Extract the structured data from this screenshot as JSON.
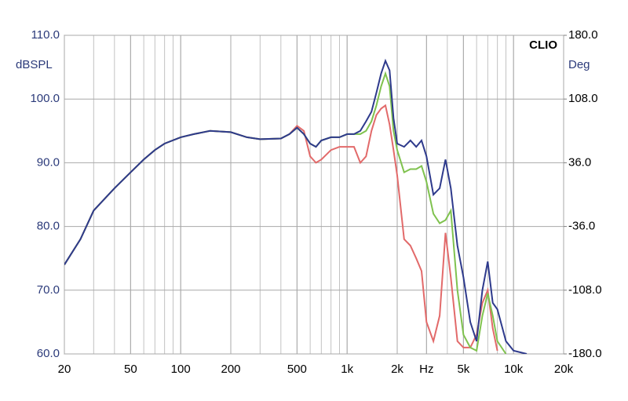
{
  "chart_data": {
    "type": "line",
    "badge": "CLIO",
    "ylabel": "dBSPL",
    "y2label": "Deg",
    "xscale": "log",
    "grid": true,
    "x": [
      20,
      25,
      30,
      40,
      50,
      60,
      70,
      80,
      100,
      120,
      150,
      200,
      250,
      300,
      400,
      450,
      500,
      550,
      600,
      650,
      700,
      800,
      900,
      1000,
      1100,
      1200,
      1300,
      1400,
      1500,
      1600,
      1700,
      1800,
      1900,
      2000,
      2200,
      2400,
      2600,
      2800,
      3000,
      3300,
      3600,
      3900,
      4200,
      4600,
      5000,
      5500,
      6000,
      6500,
      7000,
      7500,
      8000,
      9000,
      10000,
      12000
    ],
    "xlim": [
      20,
      20000
    ],
    "xticks": [
      20,
      50,
      100,
      200,
      500,
      {
        "value": 1000,
        "label": "1k"
      },
      {
        "value": 2000,
        "label": "2k"
      },
      {
        "value": 3000,
        "label": "Hz"
      },
      {
        "value": 5000,
        "label": "5k"
      },
      {
        "value": 10000,
        "label": "10k"
      },
      {
        "value": 20000,
        "label": "20k"
      }
    ],
    "ylim": [
      60,
      110
    ],
    "yticks": [
      {
        "value": 60,
        "label": "60.0"
      },
      {
        "value": 70,
        "label": "70.0"
      },
      {
        "value": 80,
        "label": "80.0"
      },
      {
        "value": 90,
        "label": "90.0"
      },
      {
        "value": 100,
        "label": "100.0"
      },
      {
        "value": 110,
        "label": "110.0"
      }
    ],
    "y2lim": [
      -180,
      180
    ],
    "y2ticks": [
      {
        "value": -180,
        "label": "-180.0"
      },
      {
        "value": -108,
        "label": "-108.0"
      },
      {
        "value": -36,
        "label": "-36.0"
      },
      {
        "value": 36,
        "label": "36.0"
      },
      {
        "value": 108,
        "label": "108.0"
      },
      {
        "value": 180,
        "label": "180.0"
      }
    ],
    "series": [
      {
        "color": "#e26a6a",
        "values": [
          74,
          78,
          82.5,
          86,
          88.5,
          90.5,
          92,
          93,
          94,
          94.5,
          95,
          94.8,
          94,
          93.7,
          93.8,
          94.5,
          95.8,
          95,
          91,
          90,
          90.5,
          92,
          92.5,
          92.5,
          92.5,
          90,
          91,
          95,
          97.5,
          98.5,
          99,
          96,
          92,
          88,
          78,
          77,
          75,
          73,
          65,
          62,
          66,
          79,
          72,
          62,
          61,
          61,
          63,
          68,
          70,
          64,
          60.5,
          null,
          null,
          null
        ]
      },
      {
        "color": "#7fc24e",
        "values": [
          74,
          78,
          82.5,
          86,
          88.5,
          90.5,
          92,
          93,
          94,
          94.5,
          95,
          94.8,
          94,
          93.7,
          93.8,
          94.5,
          95.5,
          94.5,
          93,
          92.5,
          93.5,
          94,
          94,
          94.5,
          94.5,
          94.5,
          95,
          96.5,
          99,
          102,
          104,
          102,
          95,
          92,
          88.5,
          89,
          89,
          89.5,
          87,
          82,
          80.5,
          81,
          82.5,
          70,
          63,
          61,
          60.5,
          66,
          69.5,
          66,
          62,
          60,
          null,
          null
        ]
      },
      {
        "color": "#2e3a8c",
        "values": [
          74,
          78,
          82.5,
          86,
          88.5,
          90.5,
          92,
          93,
          94,
          94.5,
          95,
          94.8,
          94,
          93.7,
          93.8,
          94.5,
          95.5,
          94.5,
          93,
          92.5,
          93.5,
          94,
          94,
          94.5,
          94.5,
          95,
          96.5,
          98,
          101,
          104,
          106,
          104.5,
          97,
          93,
          92.5,
          93.5,
          92.5,
          93.5,
          91,
          85,
          86,
          90.5,
          86,
          77,
          72,
          65,
          62,
          70,
          74.5,
          68,
          67,
          62,
          60.5,
          60
        ]
      }
    ]
  }
}
